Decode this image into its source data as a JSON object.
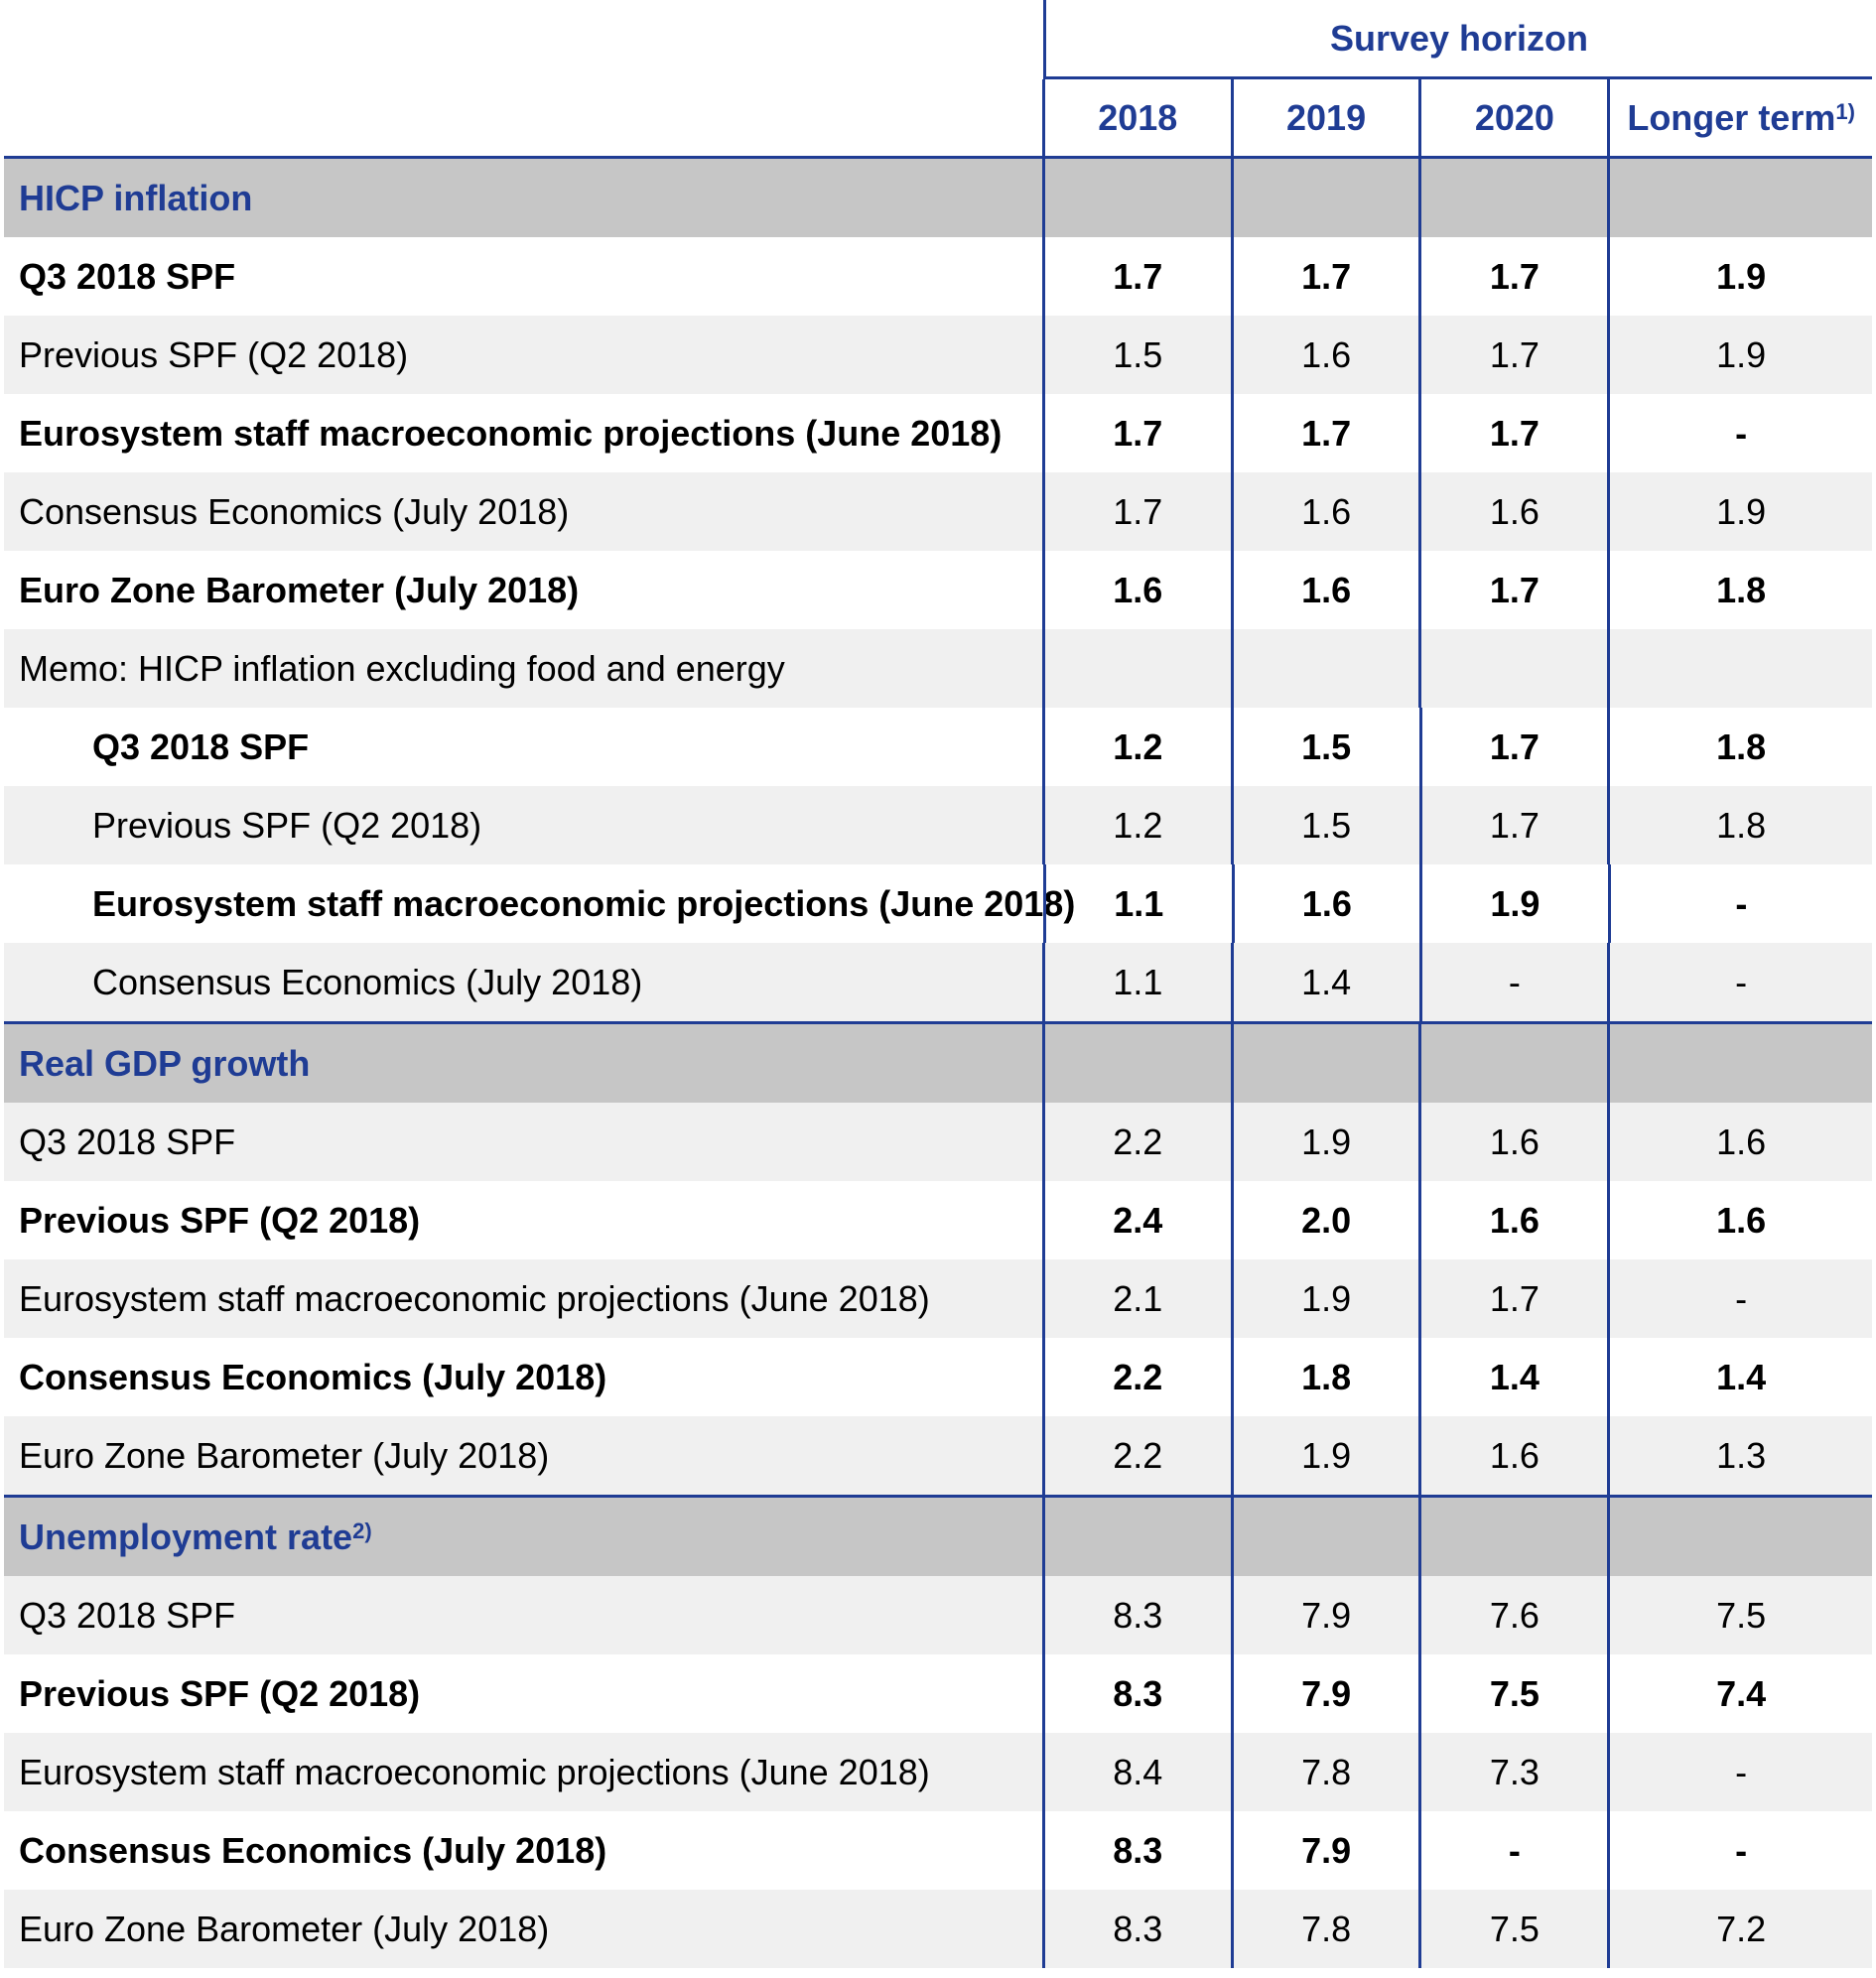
{
  "header": {
    "survey_horizon": "Survey horizon",
    "years": [
      "2018",
      "2019",
      "2020"
    ],
    "longer_term": "Longer term",
    "longer_term_note": "1)"
  },
  "sections": [
    {
      "title": "HICP inflation",
      "note": "",
      "rows": [
        {
          "label": "Q3 2018 SPF",
          "values": [
            "1.7",
            "1.7",
            "1.7",
            "1.9"
          ],
          "bold": true,
          "indent": false,
          "alt": false
        },
        {
          "label": "Previous SPF (Q2 2018)",
          "values": [
            "1.5",
            "1.6",
            "1.7",
            "1.9"
          ],
          "bold": false,
          "indent": false,
          "alt": true
        },
        {
          "label": "Eurosystem staff macroeconomic projections (June 2018)",
          "values": [
            "1.7",
            "1.7",
            "1.7",
            "-"
          ],
          "bold": true,
          "indent": false,
          "alt": false
        },
        {
          "label": "Consensus Economics (July 2018)",
          "values": [
            "1.7",
            "1.6",
            "1.6",
            "1.9"
          ],
          "bold": false,
          "indent": false,
          "alt": true
        },
        {
          "label": "Euro Zone Barometer (July 2018)",
          "values": [
            "1.6",
            "1.6",
            "1.7",
            "1.8"
          ],
          "bold": true,
          "indent": false,
          "alt": false
        },
        {
          "label": "Memo: HICP inflation excluding food and energy",
          "values": [
            "",
            "",
            "",
            ""
          ],
          "bold": false,
          "indent": false,
          "alt": true
        },
        {
          "label": "Q3 2018 SPF",
          "values": [
            "1.2",
            "1.5",
            "1.7",
            "1.8"
          ],
          "bold": true,
          "indent": true,
          "alt": false
        },
        {
          "label": "Previous SPF (Q2 2018)",
          "values": [
            "1.2",
            "1.5",
            "1.7",
            "1.8"
          ],
          "bold": false,
          "indent": true,
          "alt": true
        },
        {
          "label": "Eurosystem staff macroeconomic projections (June 2018)",
          "values": [
            "1.1",
            "1.6",
            "1.9",
            "-"
          ],
          "bold": true,
          "indent": true,
          "alt": false
        },
        {
          "label": "Consensus Economics (July 2018)",
          "values": [
            "1.1",
            "1.4",
            "-",
            "-"
          ],
          "bold": false,
          "indent": true,
          "alt": true
        }
      ]
    },
    {
      "title": "Real GDP growth",
      "note": "",
      "rows": [
        {
          "label": "Q3 2018 SPF",
          "values": [
            "2.2",
            "1.9",
            "1.6",
            "1.6"
          ],
          "bold": false,
          "indent": false,
          "alt": true
        },
        {
          "label": "Previous SPF (Q2 2018)",
          "values": [
            "2.4",
            "2.0",
            "1.6",
            "1.6"
          ],
          "bold": true,
          "indent": false,
          "alt": false
        },
        {
          "label": "Eurosystem staff macroeconomic projections (June 2018)",
          "values": [
            "2.1",
            "1.9",
            "1.7",
            "-"
          ],
          "bold": false,
          "indent": false,
          "alt": true
        },
        {
          "label": "Consensus Economics (July 2018)",
          "values": [
            "2.2",
            "1.8",
            "1.4",
            "1.4"
          ],
          "bold": true,
          "indent": false,
          "alt": false
        },
        {
          "label": "Euro Zone Barometer (July 2018)",
          "values": [
            "2.2",
            "1.9",
            "1.6",
            "1.3"
          ],
          "bold": false,
          "indent": false,
          "alt": true
        }
      ]
    },
    {
      "title": "Unemployment rate",
      "note": "2)",
      "rows": [
        {
          "label": "Q3 2018 SPF",
          "values": [
            "8.3",
            "7.9",
            "7.6",
            "7.5"
          ],
          "bold": false,
          "indent": false,
          "alt": true
        },
        {
          "label": "Previous SPF (Q2 2018)",
          "values": [
            "8.3",
            "7.9",
            "7.5",
            "7.4"
          ],
          "bold": true,
          "indent": false,
          "alt": false
        },
        {
          "label": "Eurosystem staff macroeconomic projections (June 2018)",
          "values": [
            "8.4",
            "7.8",
            "7.3",
            "-"
          ],
          "bold": false,
          "indent": false,
          "alt": true
        },
        {
          "label": "Consensus Economics (July 2018)",
          "values": [
            "8.3",
            "7.9",
            "-",
            "-"
          ],
          "bold": true,
          "indent": false,
          "alt": false
        },
        {
          "label": "Euro Zone Barometer (July 2018)",
          "values": [
            "8.3",
            "7.8",
            "7.5",
            "7.2"
          ],
          "bold": false,
          "indent": false,
          "alt": true
        }
      ]
    }
  ]
}
